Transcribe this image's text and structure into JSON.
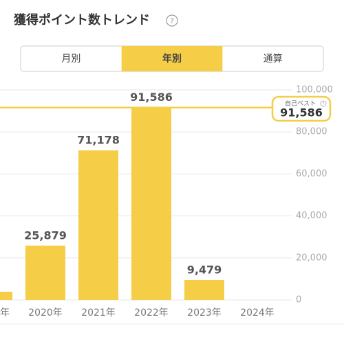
{
  "chart_data": {
    "type": "bar",
    "title": "獲得ポイント数トレンド",
    "help": "?",
    "tabs": {
      "items": [
        "月別",
        "年別",
        "通算"
      ],
      "selected": 1
    },
    "categories": [
      "年",
      "2020年",
      "2021年",
      "2022年",
      "2023年",
      "2024年"
    ],
    "values": [
      3900,
      25879,
      71178,
      91586,
      9479,
      null
    ],
    "value_labels": [
      null,
      "25,879",
      "71,178",
      "91,586",
      "9,479",
      null
    ],
    "color": "#f5cd47",
    "ylim": [
      0,
      100000
    ],
    "yticks": [
      0,
      {
        "value": 20000,
        "label": "20,000"
      },
      {
        "value": 40000,
        "label": "40,000"
      },
      {
        "value": 60000,
        "label": "60,000"
      },
      {
        "value": 80000,
        "label": "80,000"
      },
      {
        "value": 100000,
        "label": "100,000"
      }
    ],
    "grid": true,
    "best": {
      "label": "自己ベスト",
      "help": "?",
      "value": 91586,
      "value_label": "91,586"
    }
  }
}
